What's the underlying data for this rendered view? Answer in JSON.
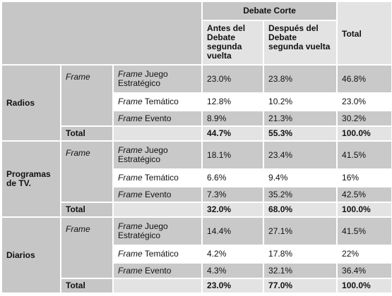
{
  "header": {
    "group_title": "Debate Corte",
    "columns": [
      "Antes del Debate segunda vuelta",
      "Después del Debate segunda vuelta",
      "Total"
    ]
  },
  "groups": [
    {
      "name": "Radios",
      "frame": "Frame",
      "rows": [
        {
          "frame": "Frame",
          "label": "Juego Estratégico",
          "values": [
            "23.0%",
            "23.8%",
            "46.8%"
          ]
        },
        {
          "frame": "Frame",
          "label": "Temático",
          "values": [
            "12.8%",
            "10.2%",
            "23.0%"
          ]
        },
        {
          "frame": "Frame",
          "label": "Evento",
          "values": [
            "8.9%",
            "21.3%",
            "30.2%"
          ]
        }
      ],
      "total": {
        "label": "Total",
        "values": [
          "44.7%",
          "55.3%",
          "100.0%"
        ]
      }
    },
    {
      "name": "Programas de TV.",
      "frame": "Frame",
      "rows": [
        {
          "frame": "Frame",
          "label": "Juego Estratégico",
          "values": [
            "18.1%",
            "23.4%",
            "41.5%"
          ]
        },
        {
          "frame": "Frame",
          "label": "Temático",
          "values": [
            "6.6%",
            "9.4%",
            "16%"
          ]
        },
        {
          "frame": "Frame",
          "label": "Evento",
          "values": [
            "7.3%",
            "35.2%",
            "42.5%"
          ]
        }
      ],
      "total": {
        "label": "Total",
        "values": [
          "32.0%",
          "68.0%",
          "100.0%"
        ]
      }
    },
    {
      "name": "Diarios",
      "frame": "Frame",
      "rows": [
        {
          "frame": "Frame",
          "label": "Juego Estratégico",
          "values": [
            "14.4%",
            "27.1%",
            "41.5%"
          ]
        },
        {
          "frame": "Frame",
          "label": "Temático",
          "values": [
            "4.2%",
            "17.8%",
            "22%"
          ]
        },
        {
          "frame": "Frame",
          "label": "Evento",
          "values": [
            "4.3%",
            "32.1%",
            "36.4%"
          ]
        }
      ],
      "total": {
        "label": "Total",
        "values": [
          "23.0%",
          "77.0%",
          "100.0%"
        ]
      }
    }
  ]
}
